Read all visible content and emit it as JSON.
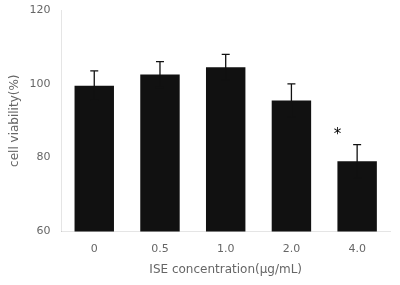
{
  "chart_data": {
    "type": "bar",
    "categories": [
      "0",
      "0.5",
      "1.0",
      "2.0",
      "4.0"
    ],
    "values": [
      99.5,
      102.5,
      104.5,
      95.5,
      79.0
    ],
    "errors": [
      4.0,
      3.5,
      3.5,
      4.5,
      4.5
    ],
    "color": "#111111",
    "xlabel": "ISE concentration(μg/mL)",
    "ylabel": "cell viability(%)",
    "ylim": [
      60,
      120
    ],
    "yticks": [
      60,
      80,
      100,
      120
    ],
    "grid": false,
    "annotations": [
      {
        "text": "*",
        "category": "4.0"
      }
    ]
  }
}
